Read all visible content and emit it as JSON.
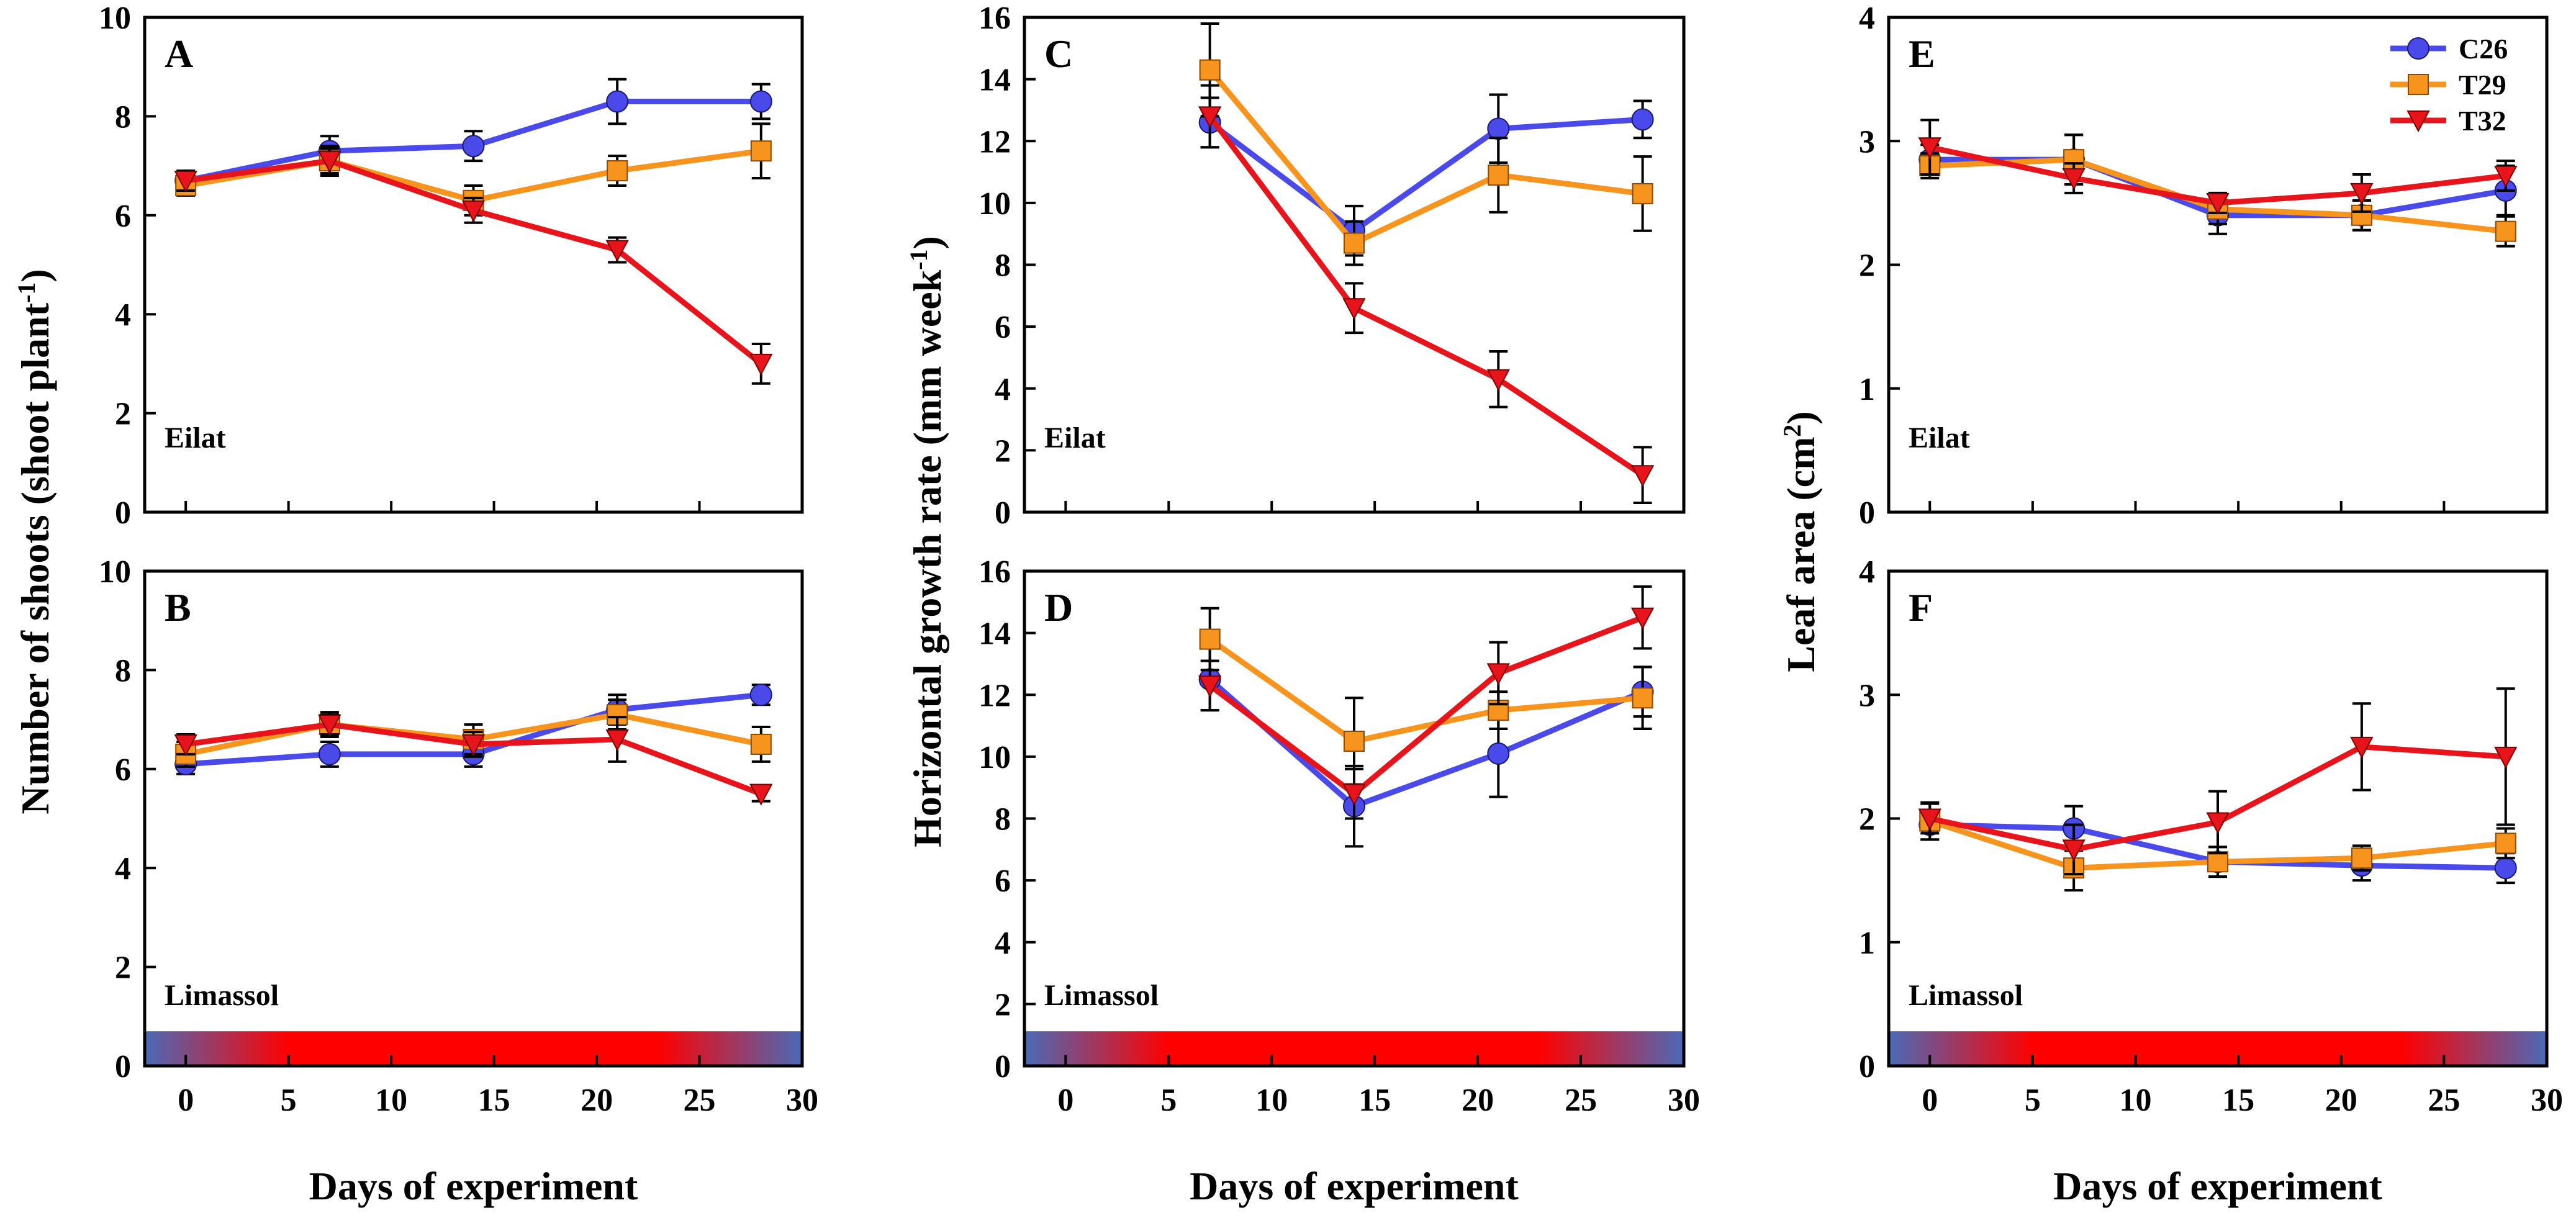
{
  "figure": {
    "xlabel": "Days of experiment",
    "legend": [
      {
        "name": "C26",
        "color": "#4a4aeb",
        "marker": "circle"
      },
      {
        "name": "T29",
        "color": "#f7941d",
        "marker": "square"
      },
      {
        "name": "T32",
        "color": "#e8141b",
        "marker": "triangle-down"
      }
    ],
    "temperature_bar": {
      "edge_color": "#4a6ab7",
      "hot_color": "#ff0000"
    }
  },
  "chart_data": [
    {
      "type": "line",
      "panel": "A",
      "site": "Eilat",
      "ylabel": "Number of shoots (shoot plant-1)",
      "xlim": [
        -2,
        30
      ],
      "ylim": [
        0,
        10
      ],
      "xticks": [
        0,
        5,
        10,
        15,
        20,
        25,
        30
      ],
      "yticks": [
        0,
        2,
        4,
        6,
        8,
        10
      ],
      "x": [
        0,
        7,
        14,
        21,
        28
      ],
      "series": [
        {
          "name": "C26",
          "values": [
            6.7,
            7.3,
            7.4,
            8.3,
            8.3
          ],
          "errors": [
            0.15,
            0.3,
            0.3,
            0.45,
            0.35
          ]
        },
        {
          "name": "T29",
          "values": [
            6.6,
            7.1,
            6.3,
            6.9,
            7.3
          ],
          "errors": [
            0.2,
            0.3,
            0.3,
            0.3,
            0.55
          ]
        },
        {
          "name": "T32",
          "values": [
            6.7,
            7.1,
            6.1,
            5.3,
            3.0
          ],
          "errors": [
            0.2,
            0.25,
            0.25,
            0.25,
            0.4
          ]
        }
      ]
    },
    {
      "type": "line",
      "panel": "B",
      "site": "Limassol",
      "ylabel": "",
      "xlim": [
        -2,
        30
      ],
      "ylim": [
        0,
        10
      ],
      "xticks": [
        0,
        5,
        10,
        15,
        20,
        25,
        30
      ],
      "yticks": [
        0,
        2,
        4,
        6,
        8,
        10
      ],
      "x": [
        0,
        7,
        14,
        21,
        28
      ],
      "series": [
        {
          "name": "C26",
          "values": [
            6.1,
            6.3,
            6.3,
            7.2,
            7.5
          ],
          "errors": [
            0.2,
            0.25,
            0.25,
            0.3,
            0.2
          ]
        },
        {
          "name": "T29",
          "values": [
            6.3,
            6.9,
            6.6,
            7.1,
            6.5
          ],
          "errors": [
            0.25,
            0.25,
            0.3,
            0.3,
            0.35
          ]
        },
        {
          "name": "T32",
          "values": [
            6.5,
            6.9,
            6.5,
            6.6,
            5.5
          ],
          "errors": [
            0.2,
            0.2,
            0.25,
            0.45,
            0.15
          ]
        }
      ]
    },
    {
      "type": "line",
      "panel": "C",
      "site": "Eilat",
      "ylabel": "Horizontal growth rate (mm week-1)",
      "xlim": [
        -2,
        30
      ],
      "ylim": [
        0,
        16
      ],
      "xticks": [
        0,
        5,
        10,
        15,
        20,
        25,
        30
      ],
      "yticks": [
        0,
        2,
        4,
        6,
        8,
        10,
        12,
        14,
        16
      ],
      "x": [
        7,
        14,
        21,
        28
      ],
      "series": [
        {
          "name": "C26",
          "values": [
            12.6,
            9.1,
            12.4,
            12.7
          ],
          "errors": [
            0.8,
            0.8,
            1.1,
            0.6
          ]
        },
        {
          "name": "T29",
          "values": [
            14.3,
            8.7,
            10.9,
            10.3
          ],
          "errors": [
            1.5,
            0.7,
            1.2,
            1.2
          ]
        },
        {
          "name": "T32",
          "values": [
            12.8,
            6.6,
            4.3,
            1.2
          ],
          "errors": [
            1.0,
            0.8,
            0.9,
            0.9
          ]
        }
      ]
    },
    {
      "type": "line",
      "panel": "D",
      "site": "Limassol",
      "ylabel": "",
      "xlim": [
        -2,
        30
      ],
      "ylim": [
        0,
        16
      ],
      "xticks": [
        0,
        5,
        10,
        15,
        20,
        25,
        30
      ],
      "yticks": [
        0,
        2,
        4,
        6,
        8,
        10,
        12,
        14,
        16
      ],
      "x": [
        7,
        14,
        21,
        28
      ],
      "series": [
        {
          "name": "C26",
          "values": [
            12.5,
            8.4,
            10.1,
            12.1
          ],
          "errors": [
            1.0,
            1.3,
            1.4,
            0.8
          ]
        },
        {
          "name": "T29",
          "values": [
            13.8,
            10.5,
            11.5,
            11.9
          ],
          "errors": [
            1.0,
            1.4,
            0.6,
            1.0
          ]
        },
        {
          "name": "T32",
          "values": [
            12.3,
            8.8,
            12.7,
            14.5
          ],
          "errors": [
            0.8,
            0.8,
            1.0,
            1.0
          ]
        }
      ]
    },
    {
      "type": "line",
      "panel": "E",
      "site": "Eilat",
      "ylabel": "Leaf area (cm2)",
      "xlim": [
        -2,
        30
      ],
      "ylim": [
        0,
        4
      ],
      "xticks": [
        0,
        5,
        10,
        15,
        20,
        25,
        30
      ],
      "yticks": [
        0,
        1,
        2,
        3,
        4
      ],
      "x": [
        0,
        7,
        14,
        21,
        28
      ],
      "series": [
        {
          "name": "C26",
          "values": [
            2.85,
            2.85,
            2.4,
            2.4,
            2.6
          ],
          "errors": [
            0.12,
            0.2,
            0.15,
            0.12,
            0.2
          ]
        },
        {
          "name": "T29",
          "values": [
            2.8,
            2.85,
            2.45,
            2.4,
            2.27
          ],
          "errors": [
            0.1,
            0.2,
            0.12,
            0.12,
            0.12
          ]
        },
        {
          "name": "T32",
          "values": [
            2.95,
            2.7,
            2.5,
            2.58,
            2.72
          ],
          "errors": [
            0.22,
            0.12,
            0.08,
            0.15,
            0.12
          ]
        }
      ]
    },
    {
      "type": "line",
      "panel": "F",
      "site": "Limassol",
      "ylabel": "",
      "xlim": [
        -2,
        30
      ],
      "ylim": [
        0,
        4
      ],
      "xticks": [
        0,
        5,
        10,
        15,
        20,
        25,
        30
      ],
      "yticks": [
        0,
        1,
        2,
        3,
        4
      ],
      "x": [
        0,
        7,
        14,
        21,
        28
      ],
      "series": [
        {
          "name": "C26",
          "values": [
            1.95,
            1.92,
            1.65,
            1.62,
            1.6
          ],
          "errors": [
            0.12,
            0.18,
            0.12,
            0.12,
            0.12
          ]
        },
        {
          "name": "T29",
          "values": [
            1.98,
            1.6,
            1.65,
            1.68,
            1.8
          ],
          "errors": [
            0.15,
            0.18,
            0.12,
            0.1,
            0.12
          ]
        },
        {
          "name": "T32",
          "values": [
            2.0,
            1.75,
            1.97,
            2.58,
            2.5
          ],
          "errors": [
            0.12,
            0.2,
            0.25,
            0.35,
            0.55
          ]
        }
      ]
    }
  ]
}
